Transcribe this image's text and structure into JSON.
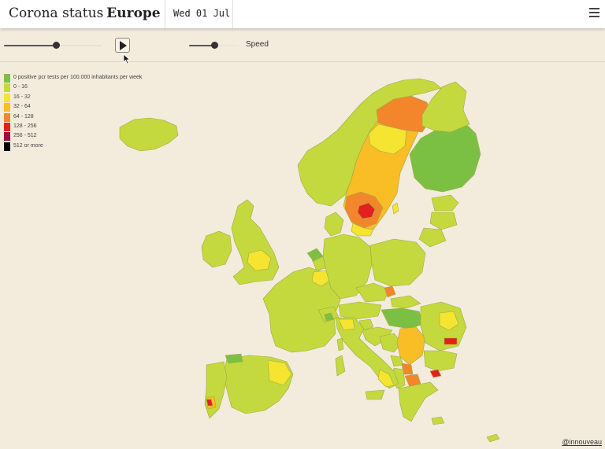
{
  "header": {
    "title_main": "Corona status",
    "title_place": "Europe",
    "date": "Wed 01 Jul",
    "menu_icon": "hamburger-menu-icon"
  },
  "controls": {
    "timeline_position": 0.53,
    "play_icon": "play-icon",
    "speed_label": "Speed",
    "speed_position": 0.5
  },
  "legend": [
    {
      "label": "0 positive pcr tests per 100.000 inhabitants per week",
      "color": "#7cc043"
    },
    {
      "label": "0 - 16",
      "color": "#c4d93d"
    },
    {
      "label": "16 - 32",
      "color": "#f5e430"
    },
    {
      "label": "32 - 64",
      "color": "#f9bd25"
    },
    {
      "label": "64 - 128",
      "color": "#f3862b"
    },
    {
      "label": "128 - 256",
      "color": "#e3201e"
    },
    {
      "label": "256 - 512",
      "color": "#9c0a3f"
    },
    {
      "label": "512 or more",
      "color": "#000000"
    }
  ],
  "credit": "@innouveau"
}
